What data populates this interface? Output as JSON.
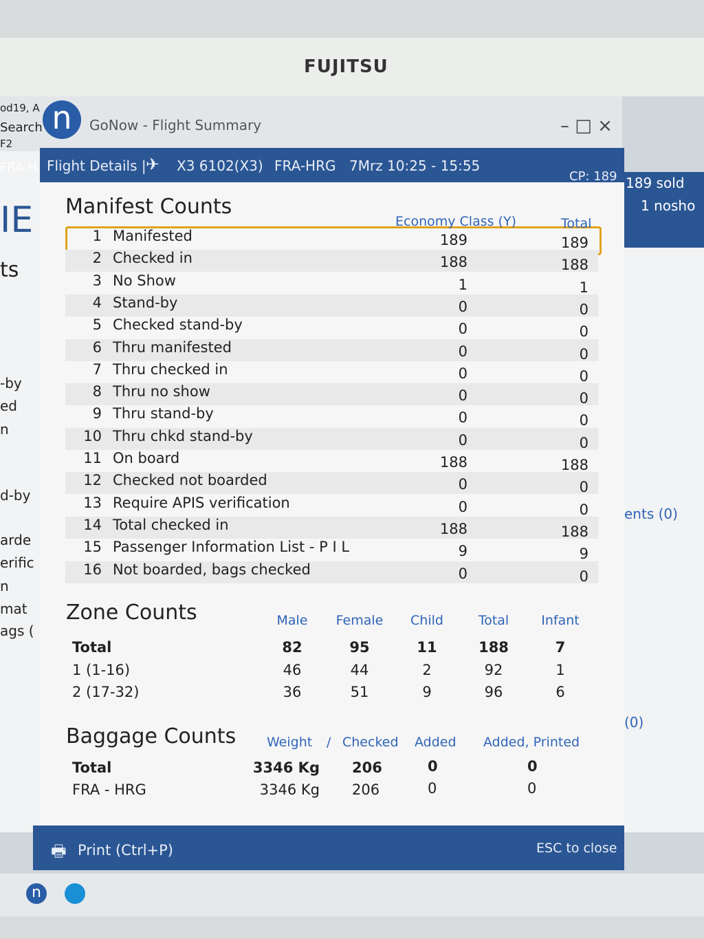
{
  "brand": "FUJITSU",
  "app": {
    "logo": "n",
    "title": "GoNow - Flight Summary",
    "controls": "– □ ×"
  },
  "background_left": [
    "od19, A",
    "Search",
    "F2",
    "FRA-H",
    "IE",
    "ts",
    "-by",
    "ed",
    "n",
    "d-by",
    "arde",
    "erific",
    "n",
    "mat",
    "ags ("
  ],
  "background_right": [
    "189 sold",
    "1 nosho",
    "ents (0)",
    "(0)"
  ],
  "header": {
    "title": "Flight Details |",
    "flight": "X3 6102(X3)",
    "route": "FRA-HRG",
    "time": "7Mrz 10:25 - 15:55",
    "cp": "CP: 189"
  },
  "manifest": {
    "title": "Manifest Counts",
    "columns": [
      "Economy Class (Y)",
      "Total"
    ],
    "rows": [
      [
        1,
        "Manifested",
        189,
        189
      ],
      [
        2,
        "Checked in",
        188,
        188
      ],
      [
        3,
        "No Show",
        1,
        1
      ],
      [
        4,
        "Stand-by",
        0,
        0
      ],
      [
        5,
        "Checked stand-by",
        0,
        0
      ],
      [
        6,
        "Thru manifested",
        0,
        0
      ],
      [
        7,
        "Thru checked in",
        0,
        0
      ],
      [
        8,
        "Thru no show",
        0,
        0
      ],
      [
        9,
        "Thru stand-by",
        0,
        0
      ],
      [
        10,
        "Thru chkd stand-by",
        0,
        0
      ],
      [
        11,
        "On board",
        188,
        188
      ],
      [
        12,
        "Checked not boarded",
        0,
        0
      ],
      [
        13,
        "Require APIS verification",
        0,
        0
      ],
      [
        14,
        "Total checked in",
        188,
        188
      ],
      [
        15,
        "Passenger Information List - P I L",
        9,
        9
      ],
      [
        16,
        "Not boarded, bags checked",
        0,
        0
      ]
    ]
  },
  "zone": {
    "title": "Zone Counts",
    "columns": [
      "Male",
      "Female",
      "Child",
      "Total",
      "Infant"
    ],
    "rows": [
      [
        "Total",
        82,
        95,
        11,
        188,
        7
      ],
      [
        "1 (1-16)",
        46,
        44,
        2,
        92,
        1
      ],
      [
        "2 (17-32)",
        36,
        51,
        9,
        96,
        6
      ]
    ]
  },
  "baggage": {
    "title": "Baggage Counts",
    "columns": [
      "Weight",
      "/",
      "Checked",
      "Added",
      "Added, Printed"
    ],
    "rows": [
      [
        "Total",
        "3346 Kg",
        206,
        0,
        0
      ],
      [
        "FRA - HRG",
        "3346 Kg",
        206,
        0,
        0
      ]
    ]
  },
  "footer": {
    "print": "Print (Ctrl+P)",
    "close": "ESC to close"
  }
}
